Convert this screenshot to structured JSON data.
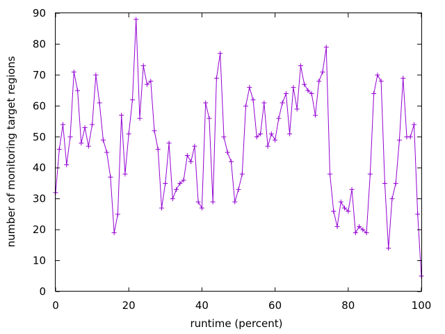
{
  "chart_data": {
    "type": "line",
    "title": "",
    "xlabel": "runtime (percent)",
    "ylabel": "number of monitoring target regions",
    "xlim": [
      0,
      100
    ],
    "ylim": [
      0,
      90
    ],
    "x_ticks": [
      0,
      20,
      40,
      60,
      80,
      100
    ],
    "y_ticks": [
      0,
      10,
      20,
      30,
      40,
      50,
      60,
      70,
      80,
      90
    ],
    "grid": false,
    "legend": "none",
    "marker": "plus",
    "series": [
      {
        "color": "#9400d3",
        "x": [
          0,
          1,
          2,
          3,
          4,
          5,
          6,
          7,
          8,
          9,
          10,
          11,
          12,
          13,
          14,
          15,
          16,
          17,
          18,
          19,
          20,
          21,
          22,
          23,
          24,
          25,
          26,
          27,
          28,
          29,
          30,
          31,
          32,
          33,
          34,
          35,
          36,
          37,
          38,
          39,
          40,
          41,
          42,
          43,
          44,
          45,
          46,
          47,
          48,
          49,
          50,
          51,
          52,
          53,
          54,
          55,
          56,
          57,
          58,
          59,
          60,
          61,
          62,
          63,
          64,
          65,
          66,
          67,
          68,
          69,
          70,
          71,
          72,
          73,
          74,
          75,
          76,
          77,
          78,
          79,
          80,
          81,
          82,
          83,
          84,
          85,
          86,
          87,
          88,
          89,
          90,
          91,
          92,
          93,
          94,
          95,
          96,
          97,
          98,
          99,
          100
        ],
        "y": [
          32,
          46,
          54,
          41,
          50,
          71,
          65,
          48,
          53,
          47,
          54,
          70,
          61,
          49,
          45,
          37,
          19,
          25,
          57,
          38,
          51,
          62,
          88,
          56,
          73,
          67,
          68,
          52,
          46,
          27,
          35,
          48,
          30,
          33,
          35,
          36,
          44,
          42,
          47,
          29,
          27,
          61,
          56,
          29,
          69,
          77,
          50,
          45,
          42,
          29,
          33,
          38,
          60,
          66,
          62,
          50,
          51,
          61,
          47,
          51,
          49,
          56,
          61,
          64,
          51,
          66,
          59,
          73,
          67,
          65,
          64,
          57,
          68,
          71,
          79,
          38,
          26,
          21,
          29,
          27,
          26,
          33,
          19,
          21,
          20,
          19,
          38,
          64,
          70,
          68,
          35,
          14,
          30,
          35,
          49,
          69,
          50,
          50,
          54,
          25,
          5
        ]
      }
    ]
  }
}
